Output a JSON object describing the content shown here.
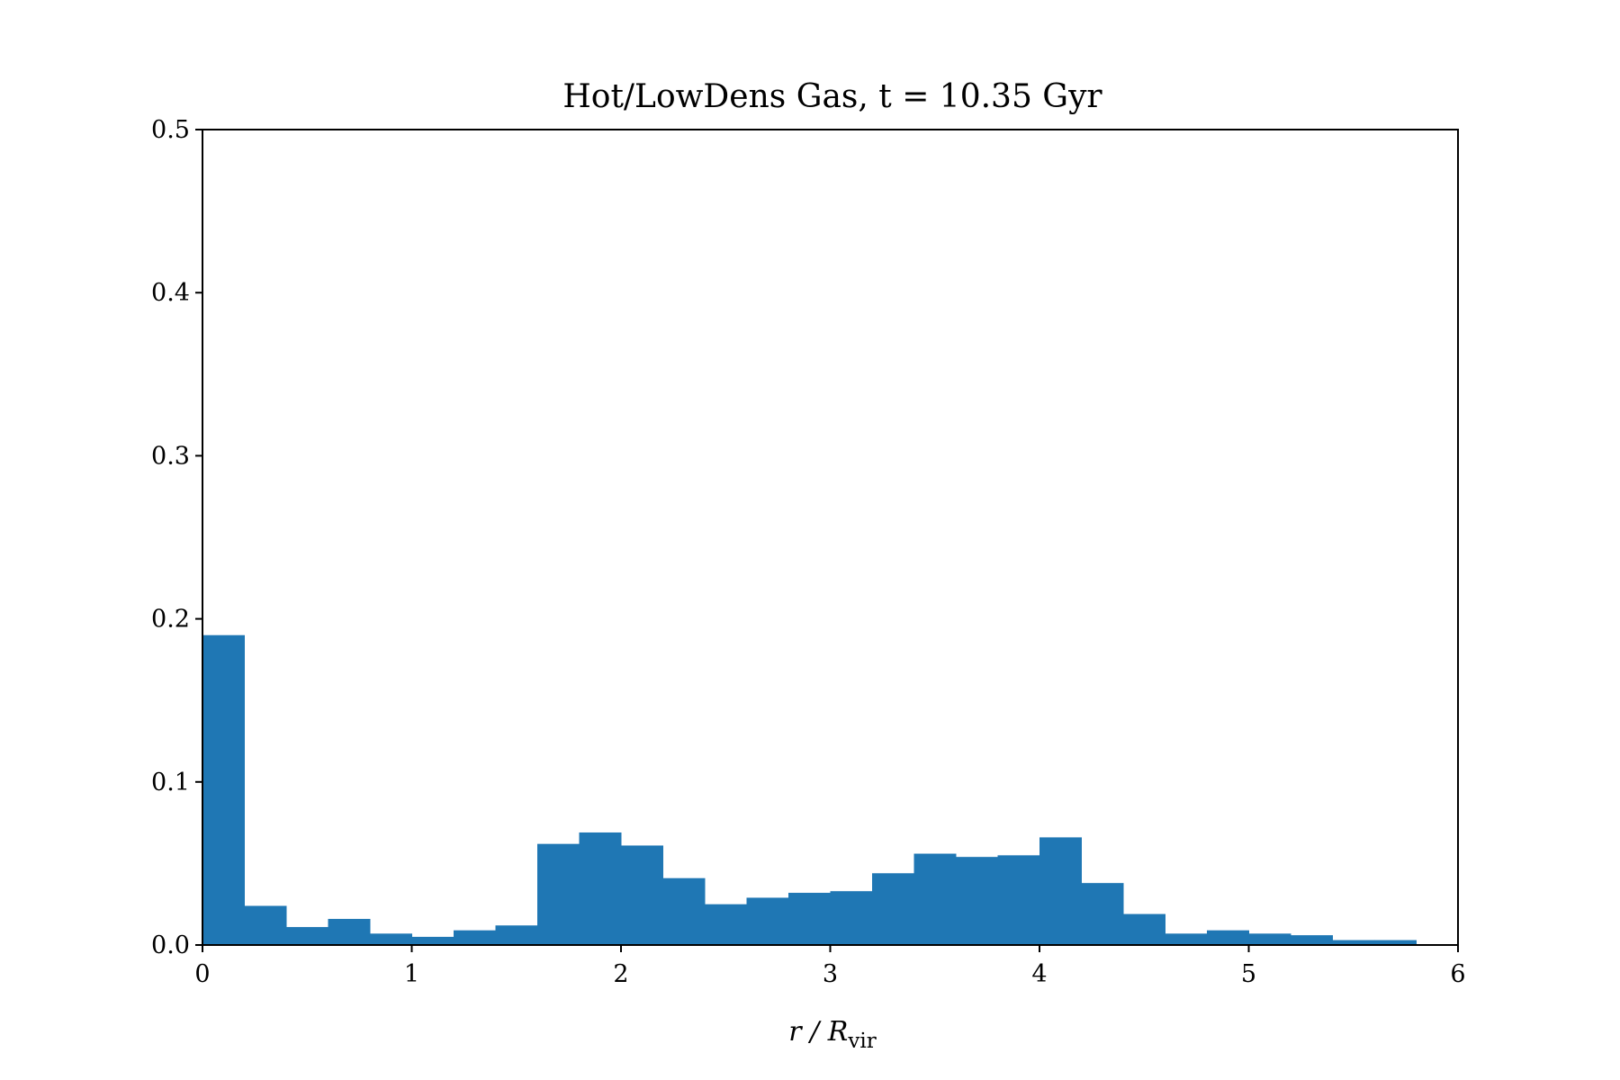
{
  "chart_data": {
    "type": "bar",
    "title": "Hot/LowDens Gas, t = 10.35 Gyr",
    "xlabel": {
      "main": "r / R",
      "subscript": "vir"
    },
    "ylabel": "",
    "xlim": [
      0,
      6
    ],
    "ylim": [
      0,
      0.5
    ],
    "x_ticks": [
      "0",
      "1",
      "2",
      "3",
      "4",
      "5",
      "6"
    ],
    "y_ticks": [
      "0.0",
      "0.1",
      "0.2",
      "0.3",
      "0.4",
      "0.5"
    ],
    "bin_width": 0.2,
    "bin_edges": [
      0,
      0.2,
      0.4,
      0.6,
      0.8,
      1.0,
      1.2,
      1.4,
      1.6,
      1.8,
      2.0,
      2.2,
      2.4,
      2.6,
      2.8,
      3.0,
      3.2,
      3.4,
      3.6,
      3.8,
      4.0,
      4.2,
      4.4,
      4.6,
      4.8,
      5.0,
      5.2,
      5.4,
      5.6,
      5.8
    ],
    "values": [
      0.19,
      0.024,
      0.011,
      0.016,
      0.007,
      0.005,
      0.009,
      0.012,
      0.062,
      0.069,
      0.061,
      0.041,
      0.025,
      0.029,
      0.032,
      0.033,
      0.044,
      0.056,
      0.054,
      0.055,
      0.066,
      0.038,
      0.019,
      0.007,
      0.009,
      0.007,
      0.006,
      0.003,
      0.003
    ],
    "bar_color": "#1f77b4",
    "grid": false
  }
}
